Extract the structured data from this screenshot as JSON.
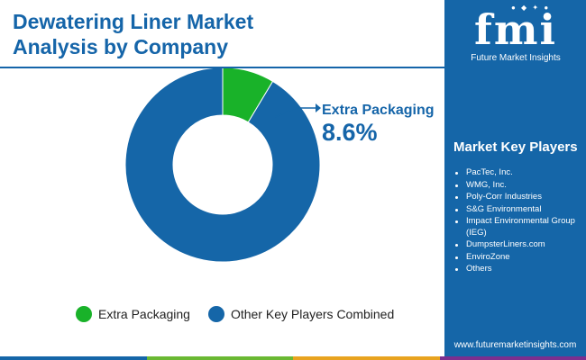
{
  "header": {
    "title_line1": "Dewatering Liner Market",
    "title_line2": "Analysis by Company"
  },
  "chart_data": {
    "type": "pie",
    "variant": "donut",
    "title": "",
    "slices": [
      {
        "name": "Extra Packaging",
        "value": 8.6,
        "color": "#19b229"
      },
      {
        "name": "Other Key Players Combined",
        "value": 91.4,
        "color": "#1566a8"
      }
    ],
    "annotation": {
      "label": "Extra Packaging",
      "value_text": "8.6%"
    },
    "legend_position": "bottom"
  },
  "sidebar": {
    "logo_mark": "fmi",
    "logo_text": "Future Market Insights",
    "players_title": "Market Key Players",
    "players": [
      "PacTec, Inc.",
      "WMG, Inc.",
      "Poly-Corr Industries",
      "S&G Environmental",
      "Impact Environmental Group (IEG)",
      "DumpsterLiners.com",
      "EnviroZone",
      "Others"
    ],
    "website": "www.futuremarketinsights.com"
  },
  "colors": {
    "accent": "#1566a8",
    "highlight": "#19b229",
    "bottom_bar": [
      "#1566a8",
      "#6ab833",
      "#e8a31f",
      "#7b2f8f"
    ]
  }
}
